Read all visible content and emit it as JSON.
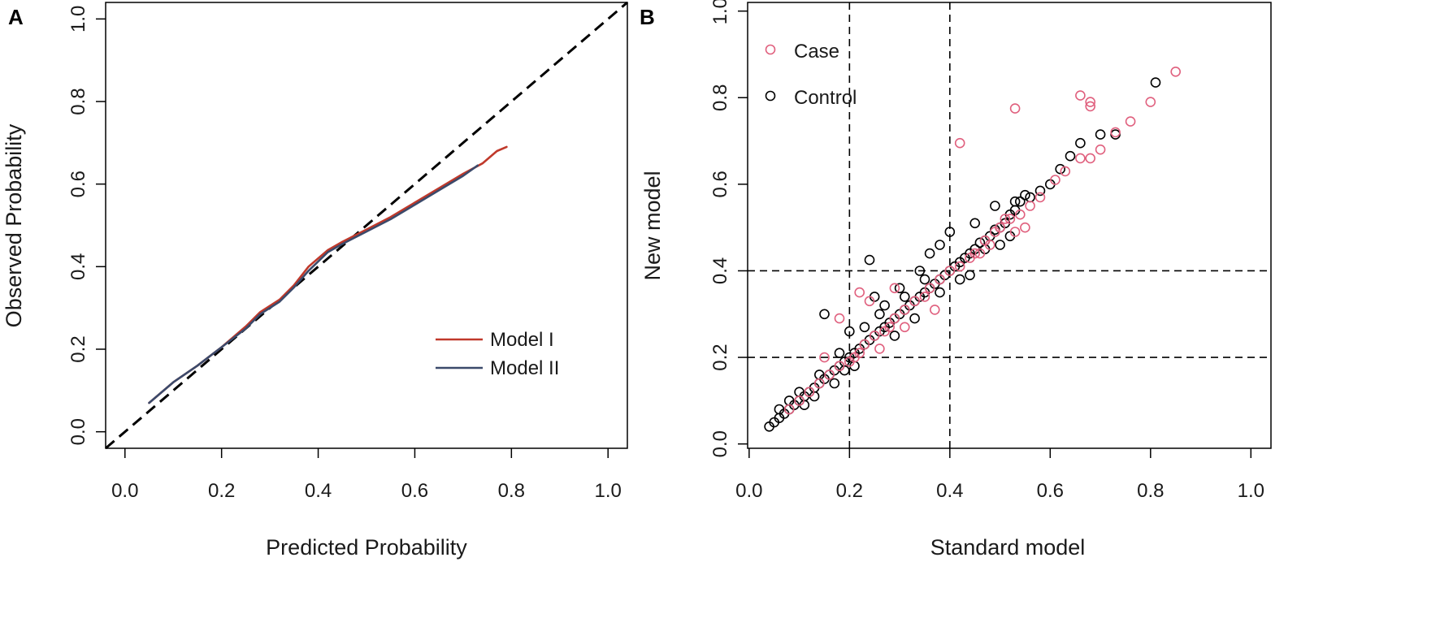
{
  "chart_data": [
    {
      "panel": "A",
      "type": "line",
      "title": "",
      "xlabel": "Predicted Probability",
      "ylabel": "Observed Probability",
      "xlim": [
        -0.04,
        1.04
      ],
      "ylim": [
        -0.04,
        1.04
      ],
      "xticks": [
        "0.0",
        "0.2",
        "0.4",
        "0.6",
        "0.8",
        "1.0"
      ],
      "yticks": [
        "0.0",
        "0.2",
        "0.4",
        "0.6",
        "0.8",
        "1.0"
      ],
      "reference_line": {
        "style": "dashed",
        "color": "#000000",
        "points": [
          [
            -0.04,
            -0.04
          ],
          [
            1.04,
            1.04
          ]
        ]
      },
      "series": [
        {
          "name": "Model I",
          "color": "#c0392b",
          "points": [
            [
              0.05,
              0.07
            ],
            [
              0.1,
              0.12
            ],
            [
              0.15,
              0.16
            ],
            [
              0.2,
              0.205
            ],
            [
              0.25,
              0.255
            ],
            [
              0.28,
              0.29
            ],
            [
              0.32,
              0.32
            ],
            [
              0.35,
              0.355
            ],
            [
              0.38,
              0.4
            ],
            [
              0.42,
              0.44
            ],
            [
              0.45,
              0.46
            ],
            [
              0.5,
              0.49
            ],
            [
              0.55,
              0.52
            ],
            [
              0.6,
              0.555
            ],
            [
              0.65,
              0.59
            ],
            [
              0.7,
              0.625
            ],
            [
              0.74,
              0.65
            ],
            [
              0.77,
              0.68
            ],
            [
              0.79,
              0.69
            ]
          ]
        },
        {
          "name": "Model II",
          "color": "#3b4a6b",
          "points": [
            [
              0.05,
              0.07
            ],
            [
              0.1,
              0.12
            ],
            [
              0.15,
              0.16
            ],
            [
              0.2,
              0.205
            ],
            [
              0.25,
              0.25
            ],
            [
              0.28,
              0.285
            ],
            [
              0.32,
              0.315
            ],
            [
              0.35,
              0.35
            ],
            [
              0.38,
              0.39
            ],
            [
              0.42,
              0.435
            ],
            [
              0.45,
              0.455
            ],
            [
              0.5,
              0.485
            ],
            [
              0.55,
              0.515
            ],
            [
              0.6,
              0.55
            ],
            [
              0.65,
              0.585
            ],
            [
              0.7,
              0.62
            ],
            [
              0.73,
              0.645
            ]
          ]
        }
      ],
      "legend": {
        "position": "bottom-right",
        "items": [
          "Model I",
          "Model II"
        ]
      }
    },
    {
      "panel": "B",
      "type": "scatter",
      "title": "",
      "xlabel": "Standard model",
      "ylabel": "New model",
      "xlim": [
        -0.003,
        1.04
      ],
      "ylim": [
        -0.01,
        1.02
      ],
      "xticks": [
        "0.0",
        "0.2",
        "0.4",
        "0.6",
        "0.8",
        "1.0"
      ],
      "yticks": [
        "0.0",
        "0.2",
        "0.4",
        "0.6",
        "0.8",
        "1.0"
      ],
      "threshold_lines": {
        "vertical": [
          0.2,
          0.4
        ],
        "horizontal": [
          0.2,
          0.4
        ],
        "style": "dashed"
      },
      "series": [
        {
          "name": "Case",
          "color": "#e0607e",
          "marker": "open-circle",
          "points": [
            [
              0.53,
              0.775
            ],
            [
              0.66,
              0.805
            ],
            [
              0.68,
              0.79
            ],
            [
              0.68,
              0.78
            ],
            [
              0.85,
              0.86
            ],
            [
              0.8,
              0.79
            ],
            [
              0.42,
              0.695
            ],
            [
              0.76,
              0.745
            ],
            [
              0.73,
              0.72
            ],
            [
              0.7,
              0.68
            ],
            [
              0.68,
              0.66
            ],
            [
              0.66,
              0.66
            ],
            [
              0.63,
              0.63
            ],
            [
              0.61,
              0.61
            ],
            [
              0.58,
              0.57
            ],
            [
              0.56,
              0.55
            ],
            [
              0.54,
              0.53
            ],
            [
              0.52,
              0.52
            ],
            [
              0.5,
              0.5
            ],
            [
              0.49,
              0.49
            ],
            [
              0.47,
              0.47
            ],
            [
              0.45,
              0.44
            ],
            [
              0.44,
              0.43
            ],
            [
              0.42,
              0.41
            ],
            [
              0.4,
              0.4
            ],
            [
              0.38,
              0.38
            ],
            [
              0.36,
              0.36
            ],
            [
              0.35,
              0.34
            ],
            [
              0.33,
              0.33
            ],
            [
              0.31,
              0.31
            ],
            [
              0.29,
              0.29
            ],
            [
              0.28,
              0.27
            ],
            [
              0.27,
              0.26
            ],
            [
              0.25,
              0.25
            ],
            [
              0.23,
              0.23
            ],
            [
              0.22,
              0.21
            ],
            [
              0.21,
              0.2
            ],
            [
              0.2,
              0.19
            ],
            [
              0.18,
              0.18
            ],
            [
              0.16,
              0.16
            ],
            [
              0.15,
              0.2
            ],
            [
              0.14,
              0.14
            ],
            [
              0.12,
              0.12
            ],
            [
              0.1,
              0.1
            ],
            [
              0.08,
              0.08
            ],
            [
              0.22,
              0.35
            ],
            [
              0.18,
              0.29
            ],
            [
              0.24,
              0.33
            ],
            [
              0.29,
              0.36
            ],
            [
              0.53,
              0.49
            ],
            [
              0.55,
              0.5
            ],
            [
              0.51,
              0.52
            ],
            [
              0.48,
              0.46
            ],
            [
              0.46,
              0.44
            ],
            [
              0.37,
              0.31
            ],
            [
              0.26,
              0.22
            ],
            [
              0.31,
              0.27
            ]
          ]
        },
        {
          "name": "Control",
          "color": "#000000",
          "marker": "open-circle",
          "points": [
            [
              0.81,
              0.835
            ],
            [
              0.73,
              0.715
            ],
            [
              0.7,
              0.715
            ],
            [
              0.66,
              0.695
            ],
            [
              0.64,
              0.665
            ],
            [
              0.62,
              0.635
            ],
            [
              0.6,
              0.6
            ],
            [
              0.58,
              0.585
            ],
            [
              0.56,
              0.57
            ],
            [
              0.55,
              0.575
            ],
            [
              0.54,
              0.56
            ],
            [
              0.53,
              0.54
            ],
            [
              0.52,
              0.53
            ],
            [
              0.51,
              0.51
            ],
            [
              0.5,
              0.5
            ],
            [
              0.49,
              0.495
            ],
            [
              0.48,
              0.48
            ],
            [
              0.47,
              0.47
            ],
            [
              0.46,
              0.465
            ],
            [
              0.45,
              0.45
            ],
            [
              0.44,
              0.44
            ],
            [
              0.43,
              0.43
            ],
            [
              0.42,
              0.42
            ],
            [
              0.41,
              0.41
            ],
            [
              0.4,
              0.49
            ],
            [
              0.4,
              0.4
            ],
            [
              0.39,
              0.39
            ],
            [
              0.38,
              0.38
            ],
            [
              0.37,
              0.37
            ],
            [
              0.36,
              0.36
            ],
            [
              0.35,
              0.35
            ],
            [
              0.34,
              0.34
            ],
            [
              0.33,
              0.33
            ],
            [
              0.32,
              0.32
            ],
            [
              0.31,
              0.31
            ],
            [
              0.3,
              0.3
            ],
            [
              0.29,
              0.29
            ],
            [
              0.28,
              0.28
            ],
            [
              0.27,
              0.27
            ],
            [
              0.26,
              0.26
            ],
            [
              0.25,
              0.25
            ],
            [
              0.24,
              0.24
            ],
            [
              0.23,
              0.23
            ],
            [
              0.22,
              0.22
            ],
            [
              0.21,
              0.21
            ],
            [
              0.2,
              0.2
            ],
            [
              0.19,
              0.19
            ],
            [
              0.18,
              0.18
            ],
            [
              0.17,
              0.17
            ],
            [
              0.16,
              0.16
            ],
            [
              0.15,
              0.15
            ],
            [
              0.14,
              0.14
            ],
            [
              0.13,
              0.13
            ],
            [
              0.12,
              0.12
            ],
            [
              0.11,
              0.11
            ],
            [
              0.1,
              0.1
            ],
            [
              0.09,
              0.09
            ],
            [
              0.08,
              0.08
            ],
            [
              0.07,
              0.07
            ],
            [
              0.06,
              0.06
            ],
            [
              0.05,
              0.05
            ],
            [
              0.04,
              0.04
            ],
            [
              0.15,
              0.3
            ],
            [
              0.24,
              0.425
            ],
            [
              0.25,
              0.34
            ],
            [
              0.38,
              0.46
            ],
            [
              0.36,
              0.44
            ],
            [
              0.34,
              0.4
            ],
            [
              0.3,
              0.36
            ],
            [
              0.45,
              0.51
            ],
            [
              0.49,
              0.55
            ],
            [
              0.53,
              0.56
            ],
            [
              0.2,
              0.26
            ],
            [
              0.27,
              0.32
            ],
            [
              0.29,
              0.25
            ],
            [
              0.33,
              0.29
            ],
            [
              0.38,
              0.35
            ],
            [
              0.42,
              0.38
            ],
            [
              0.44,
              0.39
            ],
            [
              0.47,
              0.45
            ],
            [
              0.5,
              0.46
            ],
            [
              0.52,
              0.48
            ],
            [
              0.21,
              0.18
            ],
            [
              0.19,
              0.17
            ],
            [
              0.17,
              0.14
            ],
            [
              0.13,
              0.11
            ],
            [
              0.11,
              0.09
            ],
            [
              0.26,
              0.3
            ],
            [
              0.31,
              0.34
            ],
            [
              0.35,
              0.38
            ],
            [
              0.23,
              0.27
            ],
            [
              0.18,
              0.21
            ],
            [
              0.14,
              0.16
            ],
            [
              0.1,
              0.12
            ],
            [
              0.08,
              0.1
            ],
            [
              0.06,
              0.08
            ]
          ]
        }
      ],
      "legend": {
        "position": "top-left",
        "items": [
          "Case",
          "Control"
        ]
      }
    }
  ]
}
